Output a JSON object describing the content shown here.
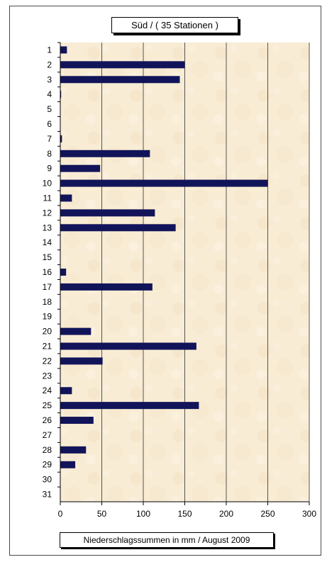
{
  "chart_data": {
    "type": "bar",
    "orientation": "horizontal",
    "title": "Süd / ( 35 Stationen )",
    "xlabel": "Niederschlagssummen in mm / August 2009",
    "ylabel": "",
    "xlim": [
      0,
      300
    ],
    "xticks": [
      0,
      50,
      100,
      150,
      200,
      250,
      300
    ],
    "grid": "vertical",
    "categories": [
      "1",
      "2",
      "3",
      "4",
      "5",
      "6",
      "7",
      "8",
      "9",
      "10",
      "11",
      "12",
      "13",
      "14",
      "15",
      "16",
      "17",
      "18",
      "19",
      "20",
      "21",
      "22",
      "23",
      "24",
      "25",
      "26",
      "27",
      "28",
      "29",
      "30",
      "31"
    ],
    "values": [
      8,
      150,
      144,
      1,
      0,
      0,
      2,
      108,
      48,
      250,
      14,
      114,
      139,
      0,
      0,
      7,
      111,
      0,
      0,
      37,
      164,
      51,
      0,
      14,
      167,
      40,
      0,
      31,
      18,
      0,
      0
    ],
    "colors": {
      "bar": "#12145a",
      "plot_bg": "#f8ecd4",
      "grid": "#555555"
    }
  }
}
